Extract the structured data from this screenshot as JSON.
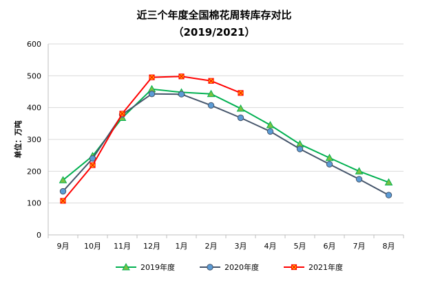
{
  "chart_data": {
    "type": "line",
    "title": "近三个年度全国棉花周转库存对比",
    "subtitle": "（2019/2021）",
    "xlabel": "",
    "ylabel": "单位：万吨",
    "ylim": [
      0,
      600
    ],
    "yticks": [
      "0",
      "100",
      "200",
      "300",
      "400",
      "500",
      "600"
    ],
    "grid": true,
    "legend_position": "bottom",
    "categories": [
      "9月",
      "10月",
      "11月",
      "12月",
      "1月",
      "2月",
      "3月",
      "4月",
      "5月",
      "6月",
      "7月",
      "8月"
    ],
    "series": [
      {
        "name": "2019年度",
        "color": "#00b050",
        "marker": "triangle",
        "marker_fill": "#7ac143",
        "values": [
          172,
          248,
          368,
          458,
          448,
          443,
          397,
          345,
          285,
          242,
          200,
          165
        ]
      },
      {
        "name": "2020年度",
        "color": "#44546a",
        "marker": "circle",
        "marker_fill": "#5b9bd5",
        "values": [
          137,
          240,
          378,
          443,
          442,
          407,
          368,
          325,
          270,
          222,
          175,
          125
        ]
      },
      {
        "name": "2021年度",
        "color": "#ff0000",
        "marker": "x-square",
        "marker_fill": "#ffc000",
        "values": [
          107,
          219,
          381,
          495,
          498,
          484,
          446,
          null,
          null,
          null,
          null,
          null
        ]
      }
    ]
  }
}
